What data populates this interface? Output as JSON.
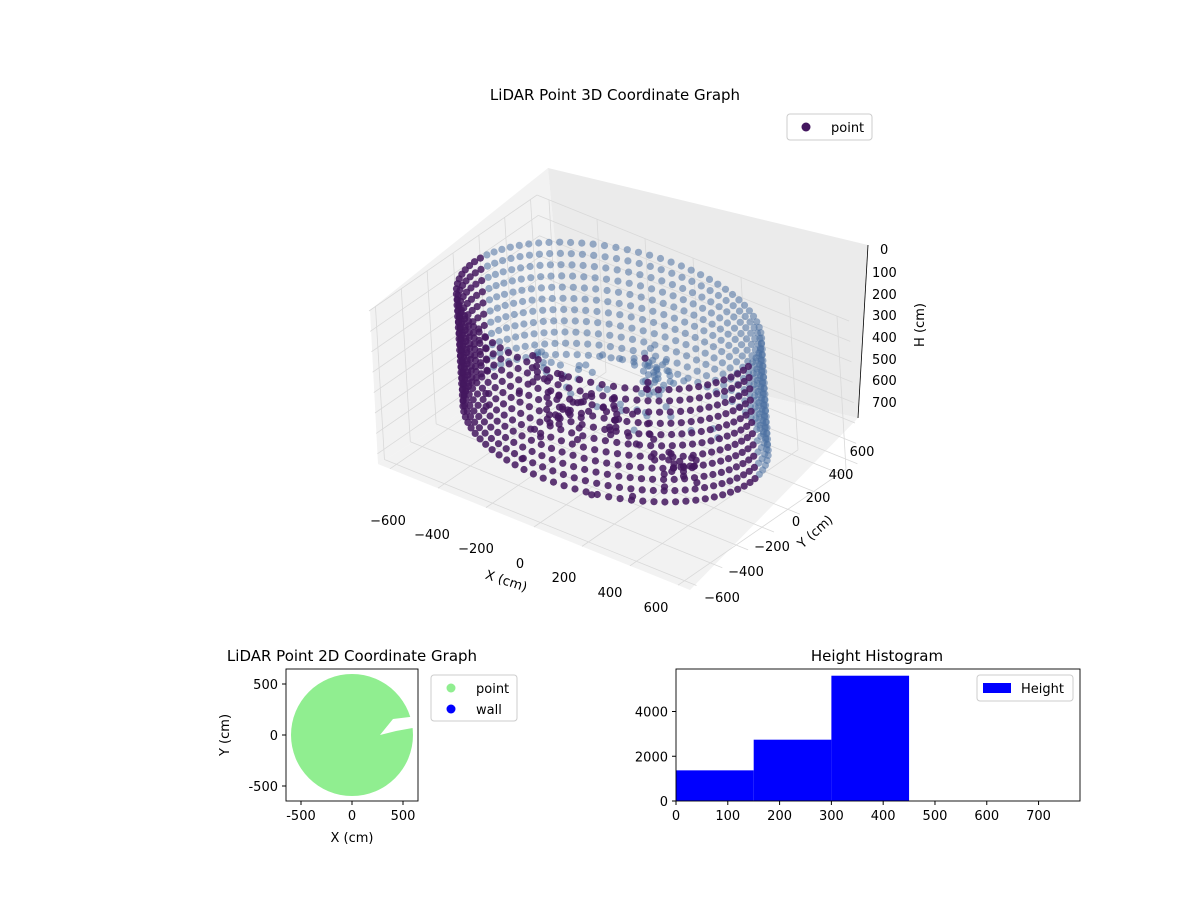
{
  "colors": {
    "point3d_dark": "#44175f",
    "point3d_light": "#4a6fa0",
    "point2d": "#90ee90",
    "wall": "#0000ff",
    "hist_bar": "#0000ff",
    "pane": "#f2f2f2",
    "grid": "#d9d9d9"
  },
  "chart_data": [
    {
      "type": "scatter",
      "projection": "3d",
      "title": "LiDAR Point 3D Coordinate Graph",
      "xlabel": "X (cm)",
      "ylabel": "Y (cm)",
      "zlabel": "H (cm)",
      "x_ticks": [
        "−600",
        "−400",
        "−200",
        "0",
        "200",
        "400",
        "600"
      ],
      "y_ticks": [
        "−600",
        "−400",
        "−200",
        "0",
        "200",
        "400",
        "600"
      ],
      "z_ticks": [
        "0",
        "100",
        "200",
        "300",
        "400",
        "500",
        "600",
        "700"
      ],
      "xlim": [
        -650,
        650
      ],
      "ylim": [
        -650,
        650
      ],
      "zlim": [
        0,
        750
      ],
      "z_inverted": true,
      "grid": true,
      "legend": {
        "placement": "top-right",
        "entries": [
          {
            "label": "point",
            "color": "#44175f"
          }
        ]
      },
      "series": [
        {
          "name": "point",
          "description_points": {
            "wall_ring_radius": 560,
            "wall_height_range": [
              0,
              600
            ],
            "center_cluster": [
              {
                "x": 100,
                "y": 150,
                "h": 350
              },
              {
                "x": 120,
                "y": 120,
                "h": 250
              },
              {
                "x": -150,
                "y": -50,
                "h": 500
              },
              {
                "x": 300,
                "y": -100,
                "h": 550
              },
              {
                "x": -300,
                "y": 100,
                "h": 450
              }
            ]
          }
        }
      ]
    },
    {
      "type": "scatter",
      "title": "LiDAR Point 2D Coordinate Graph",
      "xlabel": "X (cm)",
      "ylabel": "Y (cm)",
      "x_ticks": [
        -500,
        0,
        500
      ],
      "y_ticks": [
        -500,
        0,
        500
      ],
      "xlim": [
        -650,
        650
      ],
      "ylim": [
        -650,
        650
      ],
      "legend": {
        "placement": "outside-right",
        "entries": [
          {
            "label": "point",
            "color": "#90ee90"
          },
          {
            "label": "wall",
            "color": "#0000ff"
          }
        ]
      },
      "series": [
        {
          "name": "point",
          "shape": "filled disk",
          "center": [
            0,
            0
          ],
          "radius": 600
        },
        {
          "name": "wall",
          "points": []
        }
      ]
    },
    {
      "type": "bar",
      "subtype": "histogram",
      "title": "Height Histogram",
      "xlabel": "",
      "ylabel": "",
      "x_ticks": [
        0,
        100,
        200,
        300,
        400,
        500,
        600,
        700
      ],
      "y_ticks": [
        0,
        2000,
        4000
      ],
      "xlim": [
        0,
        780
      ],
      "ylim": [
        0,
        5900
      ],
      "legend": {
        "placement": "top-right",
        "entries": [
          {
            "label": "Height",
            "color": "#0000ff"
          }
        ]
      },
      "series": [
        {
          "name": "Height",
          "bins": [
            {
              "from": 0,
              "to": 150,
              "count": 1370
            },
            {
              "from": 150,
              "to": 300,
              "count": 2740
            },
            {
              "from": 300,
              "to": 450,
              "count": 5600
            },
            {
              "from": 450,
              "to": 600,
              "count": 0
            },
            {
              "from": 600,
              "to": 750,
              "count": 0
            }
          ]
        }
      ]
    }
  ]
}
